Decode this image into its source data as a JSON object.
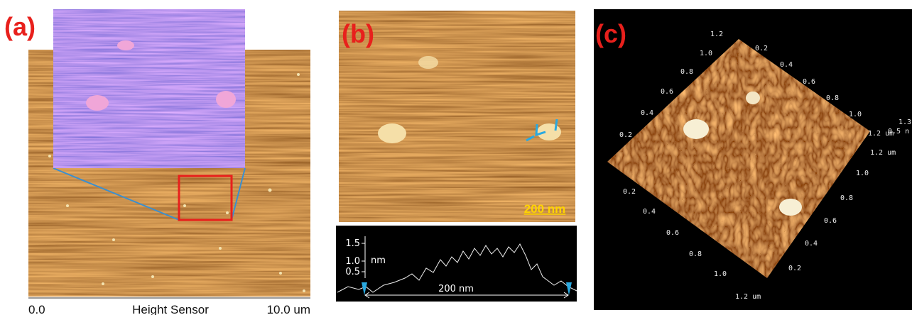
{
  "panel_a": {
    "label": "(a)",
    "scale": {
      "start": "0.0",
      "title": "Height Sensor",
      "end": "10.0 um"
    }
  },
  "panel_b": {
    "label": "(b)",
    "scale_bar": "200 nm",
    "profile": {
      "ticks": [
        "1.5",
        "1.0",
        "0.5"
      ],
      "unit": "nm",
      "span": "200 nm"
    }
  },
  "panel_c": {
    "label": "(c)",
    "top_left_axis": [
      "1.2",
      "1.0",
      "0.8",
      "0.6",
      "0.4",
      "0.2"
    ],
    "top_right_axis": [
      "0.2",
      "0.4",
      "0.6",
      "0.8",
      "1.0",
      "1.2 um"
    ],
    "z_axis": [
      "1.3",
      "0.5 n"
    ],
    "bottom_right_axis": [
      "1.2 um",
      "1.0",
      "0.8",
      "0.6",
      "0.4",
      "0.2"
    ],
    "bottom_left_axis": [
      "0.2",
      "0.4",
      "0.6",
      "0.8",
      "1.0",
      "1.2 um"
    ]
  }
}
